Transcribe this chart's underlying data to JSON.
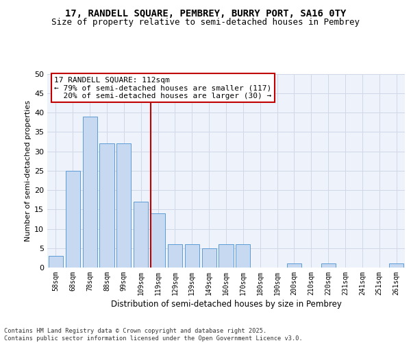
{
  "title": "17, RANDELL SQUARE, PEMBREY, BURRY PORT, SA16 0TY",
  "subtitle": "Size of property relative to semi-detached houses in Pembrey",
  "xlabel": "Distribution of semi-detached houses by size in Pembrey",
  "ylabel": "Number of semi-detached properties",
  "bins": [
    "58sqm",
    "68sqm",
    "78sqm",
    "88sqm",
    "99sqm",
    "109sqm",
    "119sqm",
    "129sqm",
    "139sqm",
    "149sqm",
    "160sqm",
    "170sqm",
    "180sqm",
    "190sqm",
    "200sqm",
    "210sqm",
    "220sqm",
    "231sqm",
    "241sqm",
    "251sqm",
    "261sqm"
  ],
  "values": [
    3,
    25,
    39,
    32,
    32,
    17,
    14,
    6,
    6,
    5,
    6,
    6,
    0,
    0,
    1,
    0,
    1,
    0,
    0,
    0,
    1
  ],
  "bar_color": "#c6d9f0",
  "bar_edge_color": "#5b9bd5",
  "vline_x_index": 6,
  "vline_color": "#c00000",
  "annotation_line1": "17 RANDELL SQUARE: 112sqm",
  "annotation_line2": "← 79% of semi-detached houses are smaller (117)",
  "annotation_line3": "  20% of semi-detached houses are larger (30) →",
  "annotation_box_color": "#ffffff",
  "annotation_box_edge": "#c00000",
  "ylim": [
    0,
    50
  ],
  "yticks": [
    0,
    5,
    10,
    15,
    20,
    25,
    30,
    35,
    40,
    45,
    50
  ],
  "grid_color": "#d0d8e8",
  "bg_color": "#eef2fa",
  "footer": "Contains HM Land Registry data © Crown copyright and database right 2025.\nContains public sector information licensed under the Open Government Licence v3.0.",
  "title_fontsize": 10,
  "subtitle_fontsize": 9,
  "ann_fontsize": 8
}
